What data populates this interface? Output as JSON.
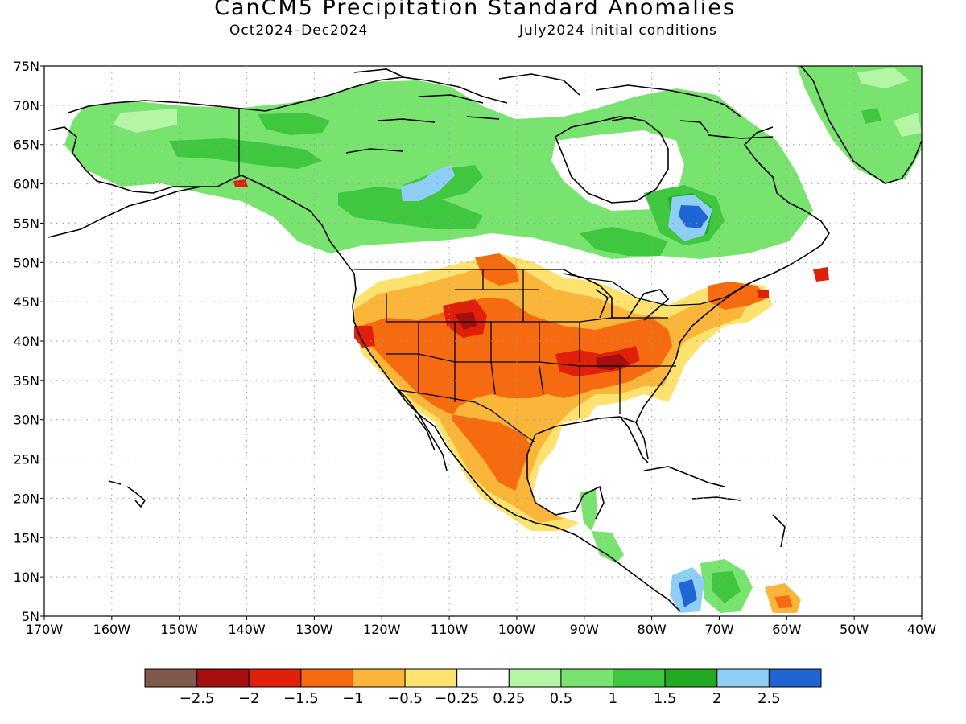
{
  "title": "CanCM5 Precipitation Standard Anomalies",
  "subtitle_left": "Oct2024–Dec2024",
  "subtitle_right": "July2024 initial conditions",
  "map": {
    "lon_range": [
      -170,
      -40
    ],
    "lat_range": [
      5,
      75
    ],
    "lat_ticks": [
      {
        "value": 75,
        "label": "75N"
      },
      {
        "value": 70,
        "label": "70N"
      },
      {
        "value": 65,
        "label": "65N"
      },
      {
        "value": 60,
        "label": "60N"
      },
      {
        "value": 55,
        "label": "55N"
      },
      {
        "value": 50,
        "label": "50N"
      },
      {
        "value": 45,
        "label": "45N"
      },
      {
        "value": 40,
        "label": "40N"
      },
      {
        "value": 35,
        "label": "35N"
      },
      {
        "value": 30,
        "label": "30N"
      },
      {
        "value": 25,
        "label": "25N"
      },
      {
        "value": 20,
        "label": "20N"
      },
      {
        "value": 15,
        "label": "15N"
      },
      {
        "value": 10,
        "label": "10N"
      },
      {
        "value": 5,
        "label": "5N"
      }
    ],
    "lon_ticks": [
      {
        "value": -170,
        "label": "170W"
      },
      {
        "value": -160,
        "label": "160W"
      },
      {
        "value": -150,
        "label": "150W"
      },
      {
        "value": -140,
        "label": "140W"
      },
      {
        "value": -130,
        "label": "130W"
      },
      {
        "value": -120,
        "label": "120W"
      },
      {
        "value": -110,
        "label": "110W"
      },
      {
        "value": -100,
        "label": "100W"
      },
      {
        "value": -90,
        "label": "90W"
      },
      {
        "value": -80,
        "label": "80W"
      },
      {
        "value": -70,
        "label": "70W"
      },
      {
        "value": -60,
        "label": "60W"
      },
      {
        "value": -50,
        "label": "50W"
      },
      {
        "value": -40,
        "label": "40W"
      }
    ]
  },
  "colorbar": {
    "colors": [
      "#7f5a4c",
      "#a50f0f",
      "#e0200a",
      "#f66a10",
      "#fab63a",
      "#fde270",
      "#ffffff",
      "#b4f5a6",
      "#78e36e",
      "#3fc83f",
      "#22aa22",
      "#8fcff5",
      "#1f65d4"
    ],
    "labels": [
      "−2.5",
      "−2",
      "−1.5",
      "−1",
      "−0.5",
      "−0.25",
      "0.25",
      "0.5",
      "1",
      "1.5",
      "2",
      "2.5"
    ]
  }
}
